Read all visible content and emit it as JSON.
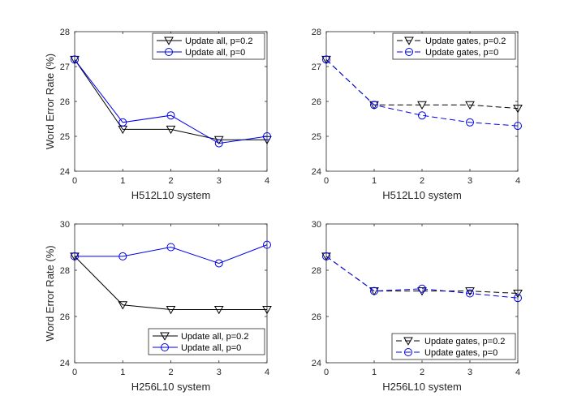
{
  "colors": {
    "series_a": "#000000",
    "series_b": "#0000ee",
    "axis": "#262626"
  },
  "chart_data": [
    {
      "type": "line",
      "xlabel": "H512L10 system",
      "ylabel": "Word Error Rate (%)",
      "x": [
        0,
        1,
        2,
        3,
        4
      ],
      "xticks": [
        "0",
        "1",
        "2",
        "3",
        "4"
      ],
      "ylim": [
        24,
        28
      ],
      "yticks": [
        "24",
        "25",
        "26",
        "27",
        "28"
      ],
      "legend_position": "top-right",
      "series": [
        {
          "name": "Update all, p=0.2",
          "values": [
            27.2,
            25.2,
            25.2,
            24.9,
            24.9
          ],
          "marker": "triangle-down",
          "line": "solid",
          "color": "#000000"
        },
        {
          "name": "Update all, p=0",
          "values": [
            27.2,
            25.4,
            25.6,
            24.8,
            25.0
          ],
          "marker": "circle",
          "line": "solid",
          "color": "#0000ee"
        }
      ]
    },
    {
      "type": "line",
      "xlabel": "H512L10 system",
      "ylabel": "",
      "x": [
        0,
        1,
        2,
        3,
        4
      ],
      "xticks": [
        "0",
        "1",
        "2",
        "3",
        "4"
      ],
      "ylim": [
        24,
        28
      ],
      "yticks": [
        "24",
        "25",
        "26",
        "27",
        "28"
      ],
      "legend_position": "top-right",
      "series": [
        {
          "name": "Update gates, p=0.2",
          "values": [
            27.2,
            25.9,
            25.9,
            25.9,
            25.8
          ],
          "marker": "triangle-down",
          "line": "dashed",
          "color": "#000000"
        },
        {
          "name": "Update gates, p=0",
          "values": [
            27.2,
            25.9,
            25.6,
            25.4,
            25.3
          ],
          "marker": "circle",
          "line": "dashed",
          "color": "#0000ee"
        }
      ]
    },
    {
      "type": "line",
      "xlabel": "H256L10 system",
      "ylabel": "Word Error Rate (%)",
      "x": [
        0,
        1,
        2,
        3,
        4
      ],
      "xticks": [
        "0",
        "1",
        "2",
        "3",
        "4"
      ],
      "ylim": [
        24,
        30
      ],
      "yticks": [
        "24",
        "26",
        "28",
        "30"
      ],
      "legend_position": "bottom-right",
      "series": [
        {
          "name": "Update all, p=0.2",
          "values": [
            28.6,
            26.5,
            26.3,
            26.3,
            26.3
          ],
          "marker": "triangle-down",
          "line": "solid",
          "color": "#000000"
        },
        {
          "name": "Update all, p=0",
          "values": [
            28.6,
            28.6,
            29.0,
            28.3,
            29.1
          ],
          "marker": "circle",
          "line": "solid",
          "color": "#0000ee"
        }
      ]
    },
    {
      "type": "line",
      "xlabel": "H256L10 system",
      "ylabel": "",
      "x": [
        0,
        1,
        2,
        3,
        4
      ],
      "xticks": [
        "0",
        "1",
        "2",
        "3",
        "4"
      ],
      "ylim": [
        24,
        30
      ],
      "yticks": [
        "24",
        "26",
        "28",
        "30"
      ],
      "legend_position": "bottom-right",
      "series": [
        {
          "name": "Update gates, p=0.2",
          "values": [
            28.6,
            27.1,
            27.1,
            27.1,
            27.0
          ],
          "marker": "triangle-down",
          "line": "dashed",
          "color": "#000000"
        },
        {
          "name": "Update gates, p=0",
          "values": [
            28.6,
            27.1,
            27.2,
            27.0,
            26.8
          ],
          "marker": "circle",
          "line": "dashed",
          "color": "#0000ee"
        }
      ]
    }
  ]
}
